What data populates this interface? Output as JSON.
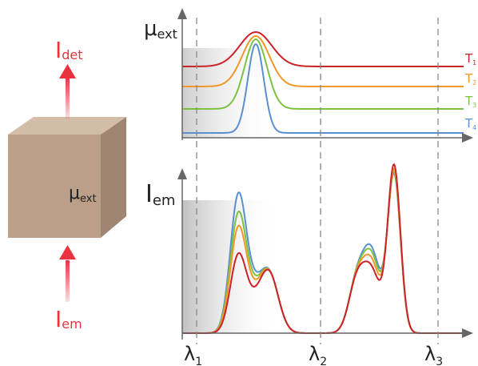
{
  "cube": {
    "label_main": "μ",
    "label_sub": "ext",
    "face_front": "#bb9f88",
    "face_top": "#d3bda9",
    "face_side": "#9f8572"
  },
  "arrows": {
    "color": "#e8333f",
    "top_label_main": "I",
    "top_label_sub": "det",
    "bottom_label_main": "I",
    "bottom_label_sub": "em"
  },
  "top_plot": {
    "ylabel_main": "μ",
    "ylabel_sub": "ext",
    "legend": [
      {
        "main": "T",
        "sub": "1",
        "color": "#cc2229"
      },
      {
        "main": "T",
        "sub": "2",
        "color": "#f0972a"
      },
      {
        "main": "T",
        "sub": "3",
        "color": "#7cc242"
      },
      {
        "main": "T",
        "sub": "4",
        "color": "#5b8fd0"
      }
    ]
  },
  "bottom_plot": {
    "ylabel_main": "I",
    "ylabel_sub": "em"
  },
  "wavelengths": [
    {
      "main": "λ",
      "sub": "1"
    },
    {
      "main": "λ",
      "sub": "2"
    },
    {
      "main": "λ",
      "sub": "3"
    }
  ]
}
